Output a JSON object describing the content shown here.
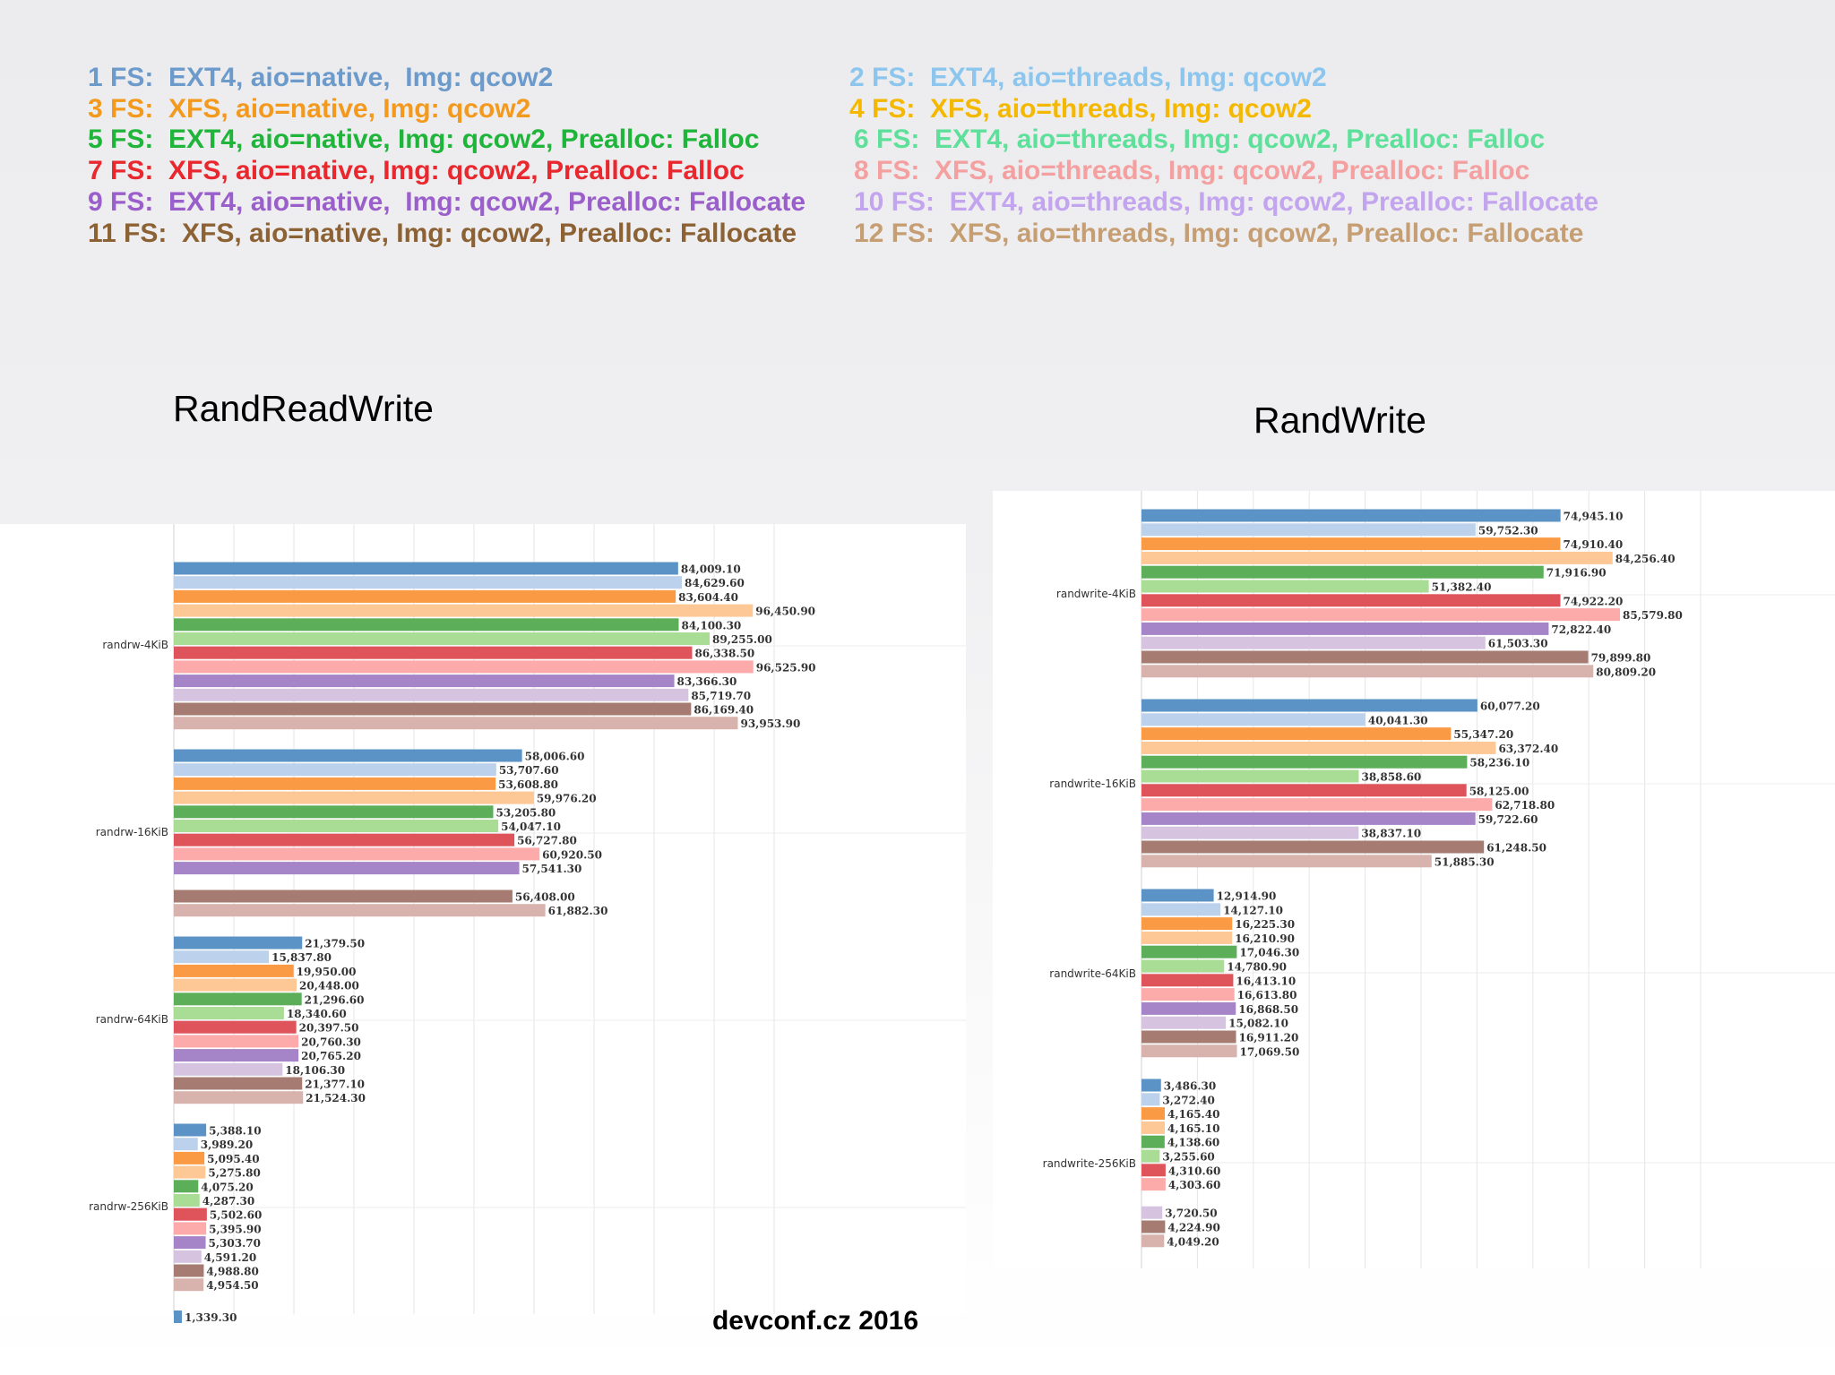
{
  "legend": [
    {
      "text": "1 FS:  EXT4, aio=native,  Img: qcow2",
      "color": "#6c9bcb"
    },
    {
      "text": "2 FS:  EXT4, aio=threads, Img: qcow2",
      "color": "#8cc6ee"
    },
    {
      "text": "3 FS:  XFS, aio=native, Img: qcow2",
      "color": "#f39a1e"
    },
    {
      "text": "4 FS:  XFS, aio=threads, Img: qcow2",
      "color": "#f5b800"
    },
    {
      "text": "5 FS:  EXT4, aio=native, Img: qcow2, Prealloc: Falloc",
      "color": "#1fb53a"
    },
    {
      "text": "6 FS:  EXT4, aio=threads, Img: qcow2, Prealloc: Falloc",
      "color": "#5ee09a"
    },
    {
      "text": "7 FS:  XFS, aio=native, Img: qcow2, Prealloc: Falloc",
      "color": "#e8282e"
    },
    {
      "text": "8 FS:  XFS, aio=threads, Img: qcow2, Prealloc: Falloc",
      "color": "#f5a0a0"
    },
    {
      "text": "9 FS:  EXT4, aio=native,  Img: qcow2, Prealloc: Fallocate",
      "color": "#9a5fcb"
    },
    {
      "text": "10 FS:  EXT4, aio=threads, Img: qcow2, Prealloc: Fallocate",
      "color": "#c3a4ee"
    },
    {
      "text": "11 FS:  XFS, aio=native, Img: qcow2, Prealloc: Fallocate",
      "color": "#8c6235"
    },
    {
      "text": "12 FS:  XFS, aio=threads, Img: qcow2, Prealloc: Fallocate",
      "color": "#c59f73"
    }
  ],
  "series_colors": [
    "#5b93c6",
    "#bcd1ec",
    "#fb9a45",
    "#fdc796",
    "#5cae59",
    "#a9dc95",
    "#df545a",
    "#fcaaaa",
    "#a584c8",
    "#d5c3e0",
    "#a67c72",
    "#d8b3ae"
  ],
  "chart_data": [
    {
      "type": "bar",
      "title": "RandReadWrite",
      "categories": [
        "randrw-4KiB",
        "randrw-16KiB",
        "randrw-64KiB",
        "randrw-256KiB"
      ],
      "values": [
        [
          84009.1,
          84629.6,
          83604.4,
          96450.9,
          84100.3,
          89255.0,
          86338.5,
          96525.9,
          83366.3,
          85719.7,
          86169.4,
          93953.9
        ],
        [
          58006.6,
          53707.6,
          53608.8,
          59976.2,
          53205.8,
          54047.1,
          56727.8,
          60920.5,
          57541.3,
          null,
          56408.0,
          61882.3
        ],
        [
          21379.5,
          15837.8,
          19950.0,
          20448.0,
          21296.6,
          18340.6,
          20397.5,
          20760.3,
          20765.2,
          18106.3,
          21377.1,
          21524.3
        ],
        [
          5388.1,
          3989.2,
          5095.4,
          5275.8,
          4075.2,
          4287.3,
          5502.6,
          5395.9,
          5303.7,
          4591.2,
          4988.8,
          4954.5
        ]
      ],
      "labels": [
        [
          "84,009.10",
          "84,629.60",
          "83,604.40",
          "96,450.90",
          "84,100.30",
          "89,255.00",
          "86,338.50",
          "96,525.90",
          "83,366.30",
          "85,719.70",
          "86,169.40",
          "93,953.90"
        ],
        [
          "58,006.60",
          "53,707.60",
          "53,608.80",
          "59,976.20",
          "53,205.80",
          "54,047.10",
          "56,727.80",
          "60,920.50",
          "57,541.30",
          null,
          "56,408.00",
          "61,882.30"
        ],
        [
          "21,379.50",
          "15,837.80",
          "19,950.00",
          "20,448.00",
          "21,296.60",
          "18,340.60",
          "20,397.50",
          "20,760.30",
          "20,765.20",
          "18,106.30",
          "21,377.10",
          "21,524.30"
        ],
        [
          "5,388.10",
          "3,989.20",
          "5,095.40",
          "5,275.80",
          "4,075.20",
          "4,287.30",
          "5,502.60",
          "5,395.90",
          "5,303.70",
          "4,591.20",
          "4,988.80",
          "4,954.50"
        ]
      ]
    },
    {
      "type": "bar",
      "title": "RandWrite",
      "categories": [
        "randwrite-4KiB",
        "randwrite-16KiB",
        "randwrite-64KiB",
        "randwrite-256KiB"
      ],
      "values": [
        [
          74945.1,
          59752.3,
          74910.4,
          84256.4,
          71916.9,
          51382.4,
          74922.2,
          85579.8,
          72822.4,
          61503.3,
          79899.8,
          80809.2
        ],
        [
          60077.2,
          40041.3,
          55347.2,
          63372.4,
          58236.1,
          38858.6,
          58125.0,
          62718.8,
          59722.6,
          38837.1,
          61248.5,
          51885.3
        ],
        [
          12914.9,
          14127.1,
          16225.3,
          16210.9,
          17046.3,
          14780.9,
          16413.1,
          16613.8,
          16868.5,
          15082.1,
          16911.2,
          17069.5
        ],
        [
          3486.3,
          3272.4,
          4165.4,
          4165.1,
          4138.6,
          3255.6,
          4310.6,
          4303.6,
          null,
          3720.5,
          4224.9,
          4049.2
        ]
      ],
      "labels": [
        [
          "74,945.10",
          "59,752.30",
          "74,910.40",
          "84,256.40",
          "71,916.90",
          "51,382.40",
          "74,922.20",
          "85,579.80",
          "72,822.40",
          "61,503.30",
          "79,899.80",
          "80,809.20"
        ],
        [
          "60,077.20",
          "40,041.30",
          "55,347.20",
          "63,372.40",
          "58,236.10",
          "38,858.60",
          "58,125.00",
          "62,718.80",
          "59,722.60",
          "38,837.10",
          "61,248.50",
          "51,885.30"
        ],
        [
          "12,914.90",
          "14,127.10",
          "16,225.30",
          "16,210.90",
          "17,046.30",
          "14,780.90",
          "16,413.10",
          "16,613.80",
          "16,868.50",
          "15,082.10",
          "16,911.20",
          "17,069.50"
        ],
        [
          "3,486.30",
          "3,272.40",
          "4,165.40",
          "4,165.10",
          "4,138.60",
          "3,255.60",
          "4,310.60",
          "4,303.60",
          null,
          "3,720.50",
          "4,224.90",
          "4,049.20"
        ]
      ]
    }
  ],
  "partial_bar": {
    "label": "1,339.30",
    "value": 1339.3
  },
  "footer": "devconf.cz 2016"
}
